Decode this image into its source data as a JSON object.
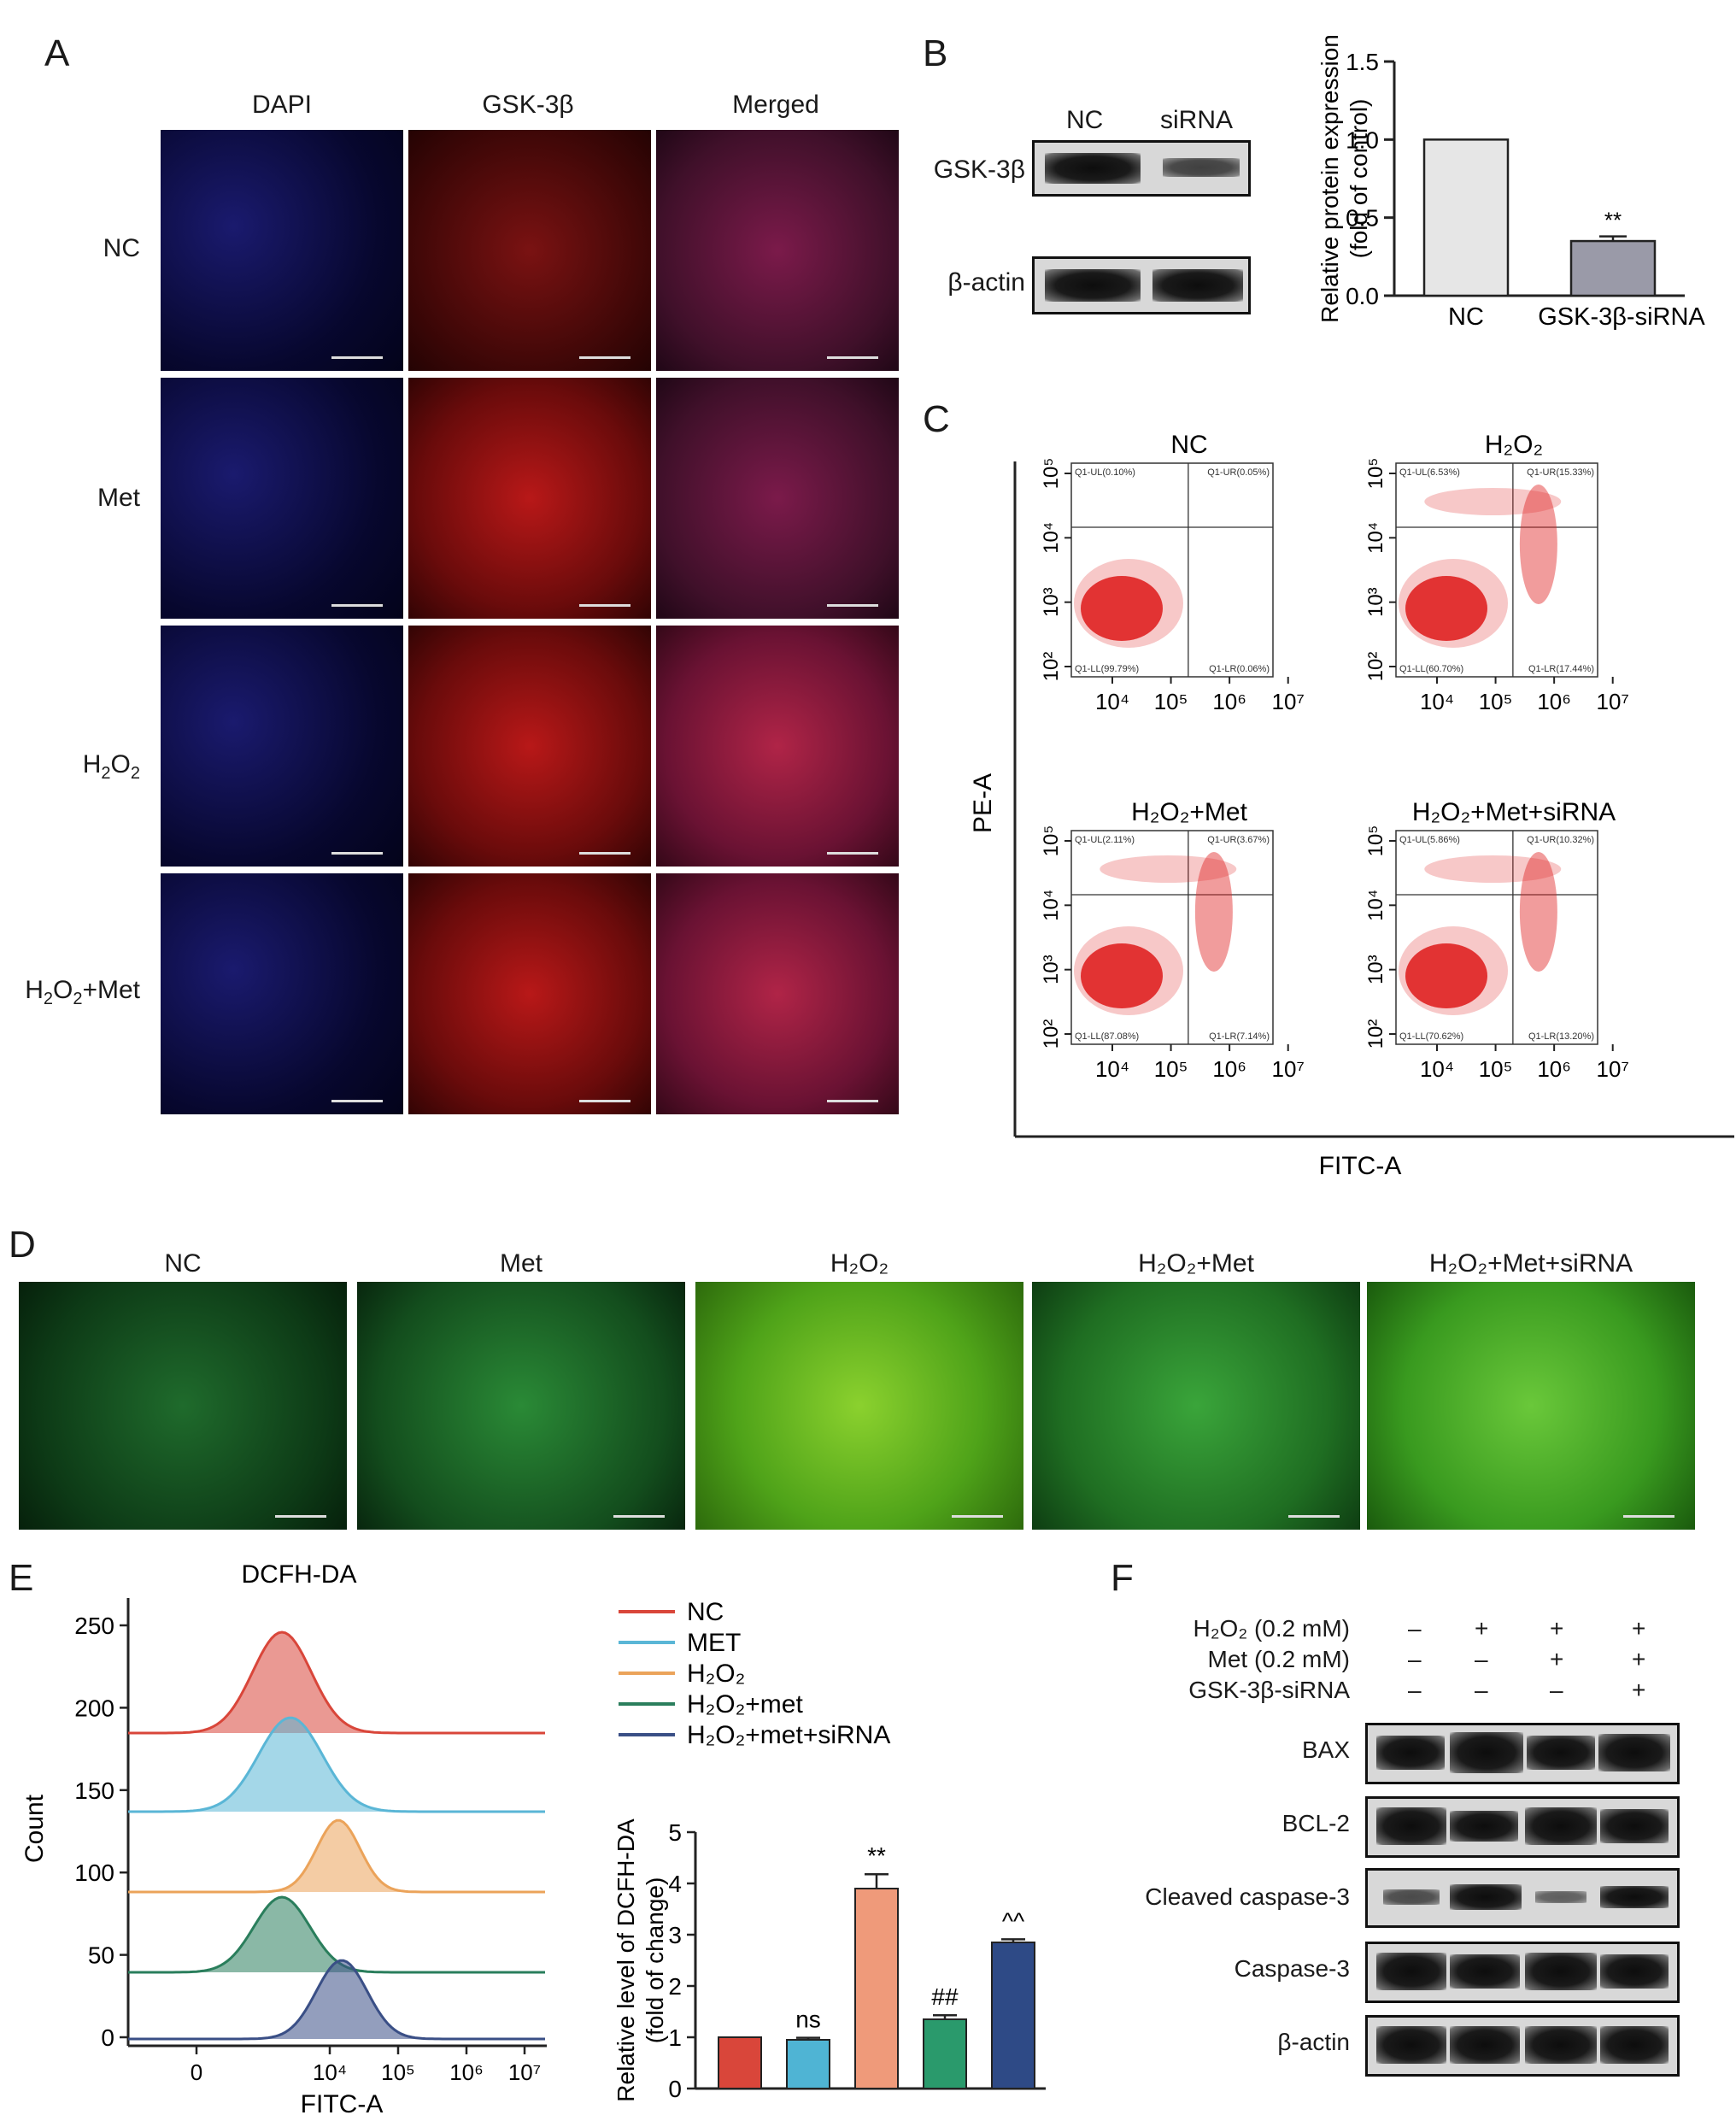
{
  "panels": {
    "A": {
      "label": "A",
      "columns": [
        "DAPI",
        "GSK-3β",
        "Merged"
      ],
      "rows": [
        "NC",
        "Met",
        "H2O2",
        "H2O2+Met"
      ]
    },
    "B": {
      "label": "B",
      "blot_headers": [
        "NC",
        "siRNA"
      ],
      "blot_rows": [
        "GSK-3β",
        "β-actin"
      ]
    },
    "C": {
      "label": "C",
      "plots": [
        {
          "title": "NC",
          "UL": "Q1-UL(0.10%)",
          "UR": "Q1-UR(0.05%)",
          "LL": "Q1-LL(99.79%)",
          "LR": "Q1-LR(0.06%)"
        },
        {
          "title": "H₂O₂",
          "UL": "Q1-UL(6.53%)",
          "UR": "Q1-UR(15.33%)",
          "LL": "Q1-LL(60.70%)",
          "LR": "Q1-LR(17.44%)"
        },
        {
          "title": "H₂O₂+Met",
          "UL": "Q1-UL(2.11%)",
          "UR": "Q1-UR(3.67%)",
          "LL": "Q1-LL(87.08%)",
          "LR": "Q1-LR(7.14%)"
        },
        {
          "title": "H₂O₂+Met+siRNA",
          "UL": "Q1-UL(5.86%)",
          "UR": "Q1-UR(10.32%)",
          "LL": "Q1-LL(70.62%)",
          "LR": "Q1-LR(13.20%)"
        }
      ],
      "xlabel": "FITC-A",
      "ylabel": "PE-A",
      "x_ticks": [
        "10⁴",
        "10⁵",
        "10⁶",
        "10⁷"
      ],
      "y_ticks": [
        "10⁵",
        "10⁴",
        "10³",
        "10²"
      ]
    },
    "D": {
      "label": "D",
      "columns": [
        "NC",
        "Met",
        "H₂O₂",
        "H₂O₂+Met",
        "H₂O₂+Met+siRNA"
      ]
    },
    "E": {
      "label": "E",
      "hist_title": "DCFH-DA",
      "hist_ylabel": "Count",
      "hist_xlabel": "FITC-A",
      "hist_y_ticks": [
        "250",
        "200",
        "150",
        "100",
        "50",
        "0"
      ],
      "hist_x_ticks": [
        "0",
        "10⁴",
        "10⁵",
        "10⁶",
        "10⁷"
      ],
      "legend": [
        "NC",
        "MET",
        "H₂O₂",
        "H₂O₂+met",
        "H₂O₂+met+siRNA"
      ]
    },
    "F": {
      "label": "F",
      "conditions": [
        {
          "name": "H₂O₂ (0.2 mM)",
          "signs": [
            "–",
            "+",
            "+",
            "+"
          ]
        },
        {
          "name": "Met (0.2 mM)",
          "signs": [
            "–",
            "–",
            "+",
            "+"
          ]
        },
        {
          "name": "GSK-3β-siRNA",
          "signs": [
            "–",
            "–",
            "–",
            "+"
          ]
        }
      ],
      "blot_rows": [
        "BAX",
        "BCL-2",
        "Cleaved caspase-3",
        "Caspase-3",
        "β-actin"
      ]
    }
  },
  "chart_data": [
    {
      "type": "bar",
      "panel": "B",
      "categories": [
        "NC",
        "GSK-3β-siRNA"
      ],
      "values": [
        1.0,
        0.35
      ],
      "errors": [
        0,
        0.03
      ],
      "annotations": [
        "",
        "**"
      ],
      "ylabel": "Relative protein expression (fold of control)",
      "ylim": [
        0,
        1.5
      ],
      "y_ticks": [
        "0.0",
        "0.5",
        "1.0",
        "1.5"
      ],
      "colors": [
        "#e6e6e6",
        "#9a9aa8"
      ]
    },
    {
      "type": "area",
      "panel": "E",
      "title": "DCFH-DA",
      "xlabel": "FITC-A",
      "ylabel": "Count",
      "series": [
        {
          "name": "NC",
          "color": "#d9463a"
        },
        {
          "name": "MET",
          "color": "#5ab6d6"
        },
        {
          "name": "H₂O₂",
          "color": "#eba35a"
        },
        {
          "name": "H₂O₂+met",
          "color": "#2a7e5c"
        },
        {
          "name": "H₂O₂+met+siRNA",
          "color": "#3a4f86"
        }
      ]
    },
    {
      "type": "bar",
      "panel": "E",
      "categories": [
        "NC",
        "MET",
        "H₂O₂",
        "H₂O₂+met",
        "H₂O₂+met+siRNA"
      ],
      "values": [
        1.0,
        0.95,
        3.9,
        1.35,
        2.85
      ],
      "errors": [
        0,
        0.04,
        0.28,
        0.08,
        0.06
      ],
      "annotations": [
        "",
        "ns",
        "**",
        "##",
        "^^"
      ],
      "colors": [
        "#d9463a",
        "#4fb4d4",
        "#ef9a7a",
        "#2a9a6c",
        "#2e4a86"
      ],
      "ylabel": "Relative level of DCFH-DA (fold of change)",
      "ylim": [
        0,
        5
      ],
      "y_ticks": [
        "0",
        "1",
        "2",
        "3",
        "4",
        "5"
      ]
    }
  ]
}
